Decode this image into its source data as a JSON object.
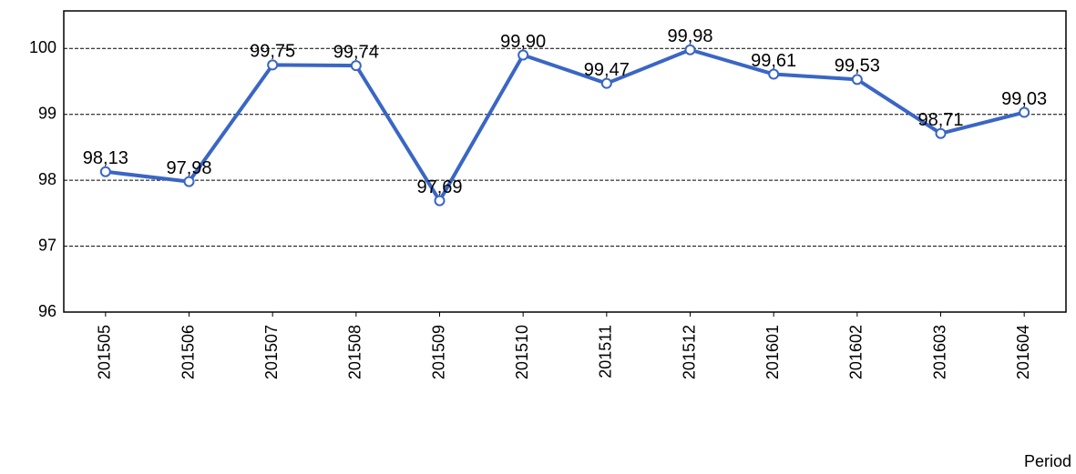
{
  "chart_data": {
    "type": "line",
    "x_label": "Period",
    "categories": [
      "201505",
      "201506",
      "201507",
      "201508",
      "201509",
      "201510",
      "201511",
      "201512",
      "201601",
      "201602",
      "201603",
      "201604"
    ],
    "values": [
      98.13,
      97.98,
      99.75,
      99.74,
      97.69,
      99.9,
      99.47,
      99.98,
      99.61,
      99.53,
      98.71,
      99.03
    ],
    "value_labels": [
      "98,13",
      "97,98",
      "99,75",
      "99,74",
      "97,69",
      "99,90",
      "99,47",
      "99,98",
      "99,61",
      "99,53",
      "98,71",
      "99,03"
    ],
    "color": "#3a66c4",
    "ylim": [
      96,
      100.57
    ],
    "yticks": [
      96,
      97,
      98,
      99,
      100
    ],
    "grid": true
  }
}
